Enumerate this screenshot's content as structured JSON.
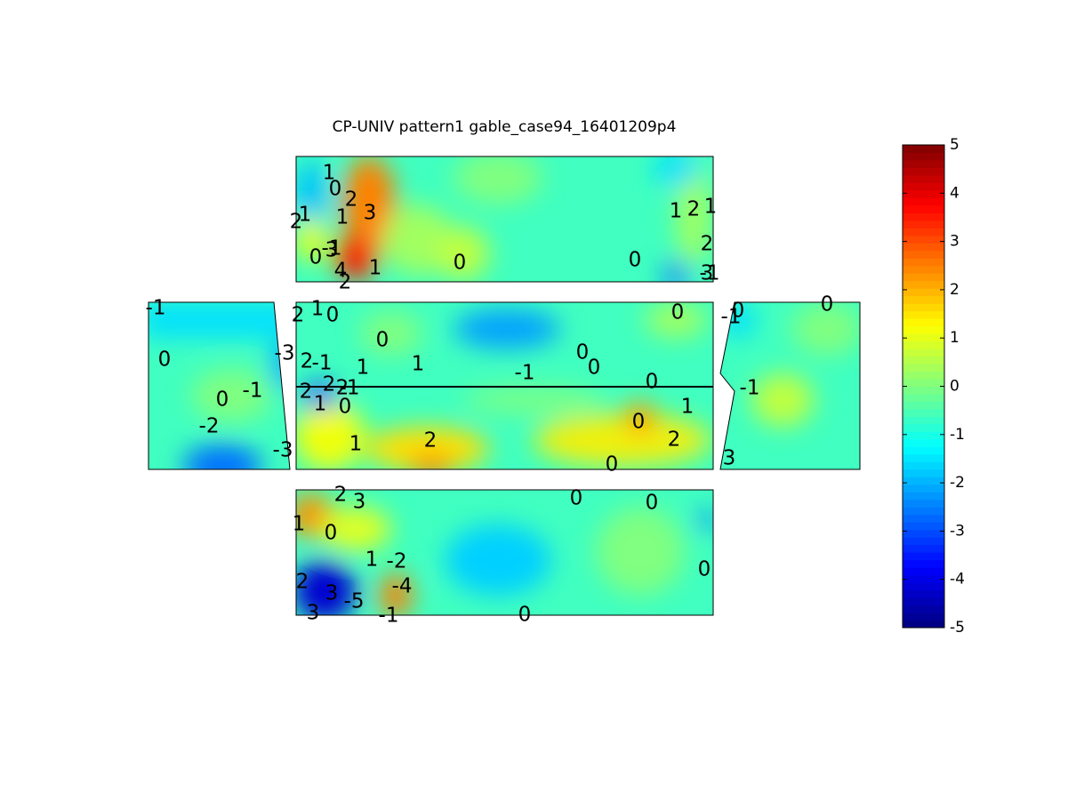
{
  "chart_data": {
    "type": "contour",
    "title": "CP-UNIV pattern1 gable_case94_16401209p4",
    "colormap": "jet",
    "clim": [
      -5,
      5
    ],
    "cticks": [
      -5,
      -4,
      -3,
      -2,
      -1,
      0,
      1,
      2,
      3,
      4,
      5
    ],
    "contour_labels": [
      1,
      0,
      2,
      3,
      2,
      1,
      1,
      -1,
      0,
      3,
      4,
      2,
      1,
      0,
      0,
      1,
      2,
      1,
      2,
      3,
      -1,
      -1,
      0,
      0,
      -1,
      -2,
      -3,
      -3,
      2,
      1,
      0,
      0,
      1,
      1,
      2,
      -1,
      -1,
      0,
      0,
      0,
      0,
      2,
      2,
      2,
      -1,
      1,
      0,
      1,
      2,
      0,
      1,
      2,
      0,
      -1,
      0,
      0,
      -1,
      3,
      2,
      3,
      1,
      0,
      1,
      -2,
      2,
      -4,
      3,
      -5,
      3,
      -1,
      0,
      0,
      0,
      0
    ]
  }
}
